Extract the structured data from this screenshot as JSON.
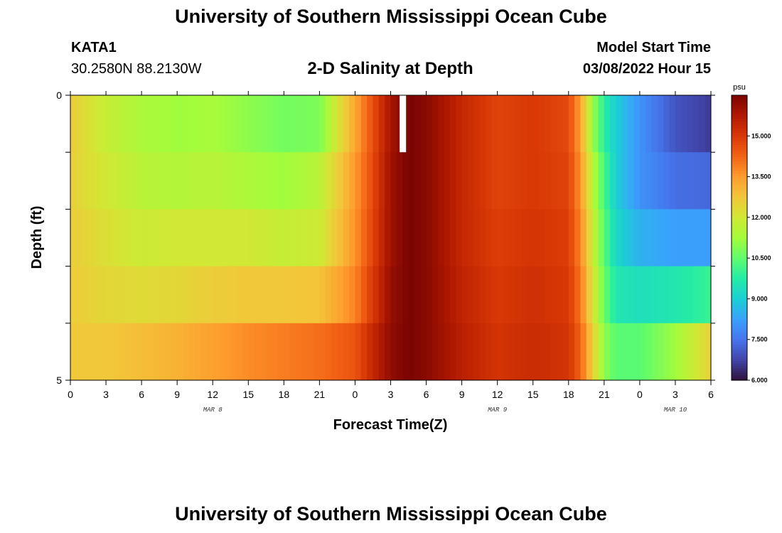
{
  "header": {
    "title": "University of Southern Mississippi Ocean Cube",
    "station": "KATA1",
    "coords": "30.2580N  88.2130W",
    "chart_title": "2-D Salinity at Depth",
    "model_start_label": "Model Start Time",
    "model_start_value": "03/08/2022 Hour 15"
  },
  "footer": {
    "title": "University of Southern Mississippi Ocean Cube"
  },
  "colors": {
    "colormap": [
      "#30123b",
      "#4145ab",
      "#4675ed",
      "#39a2fc",
      "#1bcfd4",
      "#24eca6",
      "#61fc6c",
      "#a4fc3b",
      "#d1e834",
      "#f3c63a",
      "#fe9b2d",
      "#f36315",
      "#d93806",
      "#b11901",
      "#7a0402"
    ]
  },
  "chart_data": {
    "type": "heatmap",
    "title": "2-D Salinity at Depth",
    "xlabel": "Forecast Time(Z)",
    "ylabel": "Depth (ft)",
    "unit": "psu",
    "x_tick_labels": [
      "0",
      "3",
      "6",
      "9",
      "12",
      "15",
      "18",
      "21",
      "0",
      "3",
      "6",
      "9",
      "12",
      "15",
      "18",
      "21",
      "0",
      "3",
      "6"
    ],
    "x_range_hours": [
      0,
      54
    ],
    "y_tick_labels": [
      "0",
      "5"
    ],
    "y_range_ft": [
      0,
      5
    ],
    "depth_layers": 5,
    "day_labels": [
      {
        "text": "MAR 8",
        "hour": 12
      },
      {
        "text": "MAR 9",
        "hour": 36
      },
      {
        "text": "MAR 10",
        "hour": 51
      }
    ],
    "colorbar": {
      "ticks": [
        "15.000",
        "13.500",
        "12.000",
        "10.500",
        "9.000",
        "7.500",
        "6.000"
      ],
      "tick_values": [
        15.0,
        13.5,
        12.0,
        10.5,
        9.0,
        7.5,
        6.0
      ],
      "range": [
        6.0,
        16.5
      ]
    },
    "missing_cell": {
      "hour": 28,
      "layer": 0
    },
    "time_hours": [
      0,
      3,
      6,
      9,
      12,
      15,
      18,
      21,
      24,
      25.5,
      27,
      28.5,
      30,
      33,
      36,
      39,
      42,
      43,
      44,
      45,
      46,
      48,
      51,
      54
    ],
    "salinity_by_layer": [
      [
        12.6,
        11.8,
        11.4,
        11.2,
        11.3,
        11.0,
        10.7,
        10.8,
        13.3,
        14.6,
        15.9,
        16.5,
        16.3,
        15.4,
        14.8,
        15.0,
        14.7,
        13.4,
        11.2,
        9.8,
        9.0,
        8.0,
        7.0,
        6.6
      ],
      [
        12.5,
        12.0,
        11.6,
        11.5,
        11.6,
        11.4,
        11.2,
        11.6,
        13.5,
        14.7,
        16.0,
        16.5,
        16.3,
        15.4,
        14.8,
        15.0,
        14.8,
        13.6,
        11.6,
        10.2,
        9.0,
        8.0,
        7.4,
        7.3
      ],
      [
        12.6,
        12.2,
        11.9,
        12.0,
        12.0,
        12.0,
        11.8,
        11.9,
        13.6,
        14.8,
        16.0,
        16.5,
        16.3,
        15.4,
        14.9,
        15.1,
        14.9,
        13.8,
        11.9,
        10.4,
        9.2,
        8.5,
        8.2,
        8.2
      ],
      [
        12.6,
        12.4,
        12.3,
        12.4,
        12.6,
        12.7,
        12.7,
        12.8,
        13.8,
        15.0,
        16.1,
        16.5,
        16.3,
        15.5,
        15.0,
        15.2,
        15.0,
        14.0,
        12.2,
        10.6,
        9.6,
        9.4,
        9.6,
        10.0
      ],
      [
        12.7,
        12.7,
        12.9,
        13.1,
        13.4,
        13.7,
        13.9,
        14.1,
        14.5,
        15.4,
        16.2,
        16.5,
        16.3,
        15.6,
        15.1,
        15.3,
        15.1,
        14.3,
        12.6,
        11.0,
        10.4,
        10.4,
        11.2,
        12.5
      ]
    ]
  }
}
